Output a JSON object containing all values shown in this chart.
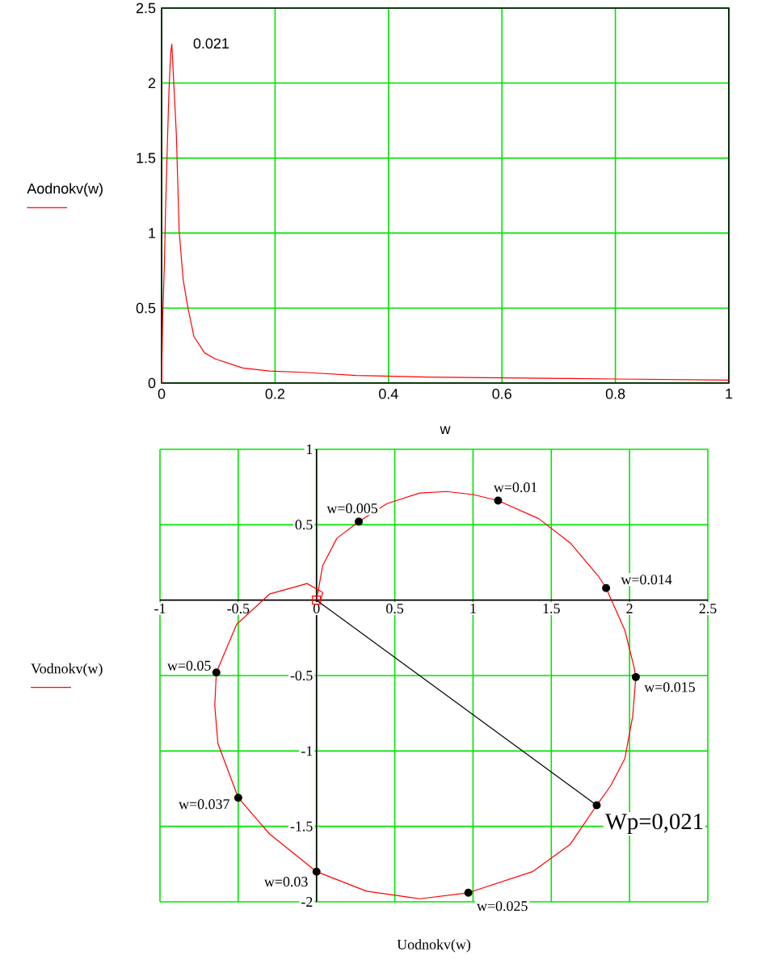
{
  "chart_data": [
    {
      "type": "line",
      "xlabel": "w",
      "ylabel": "Aodnokv(w)",
      "xlim": [
        0,
        1
      ],
      "ylim": [
        0,
        2.5
      ],
      "xticks": [
        0,
        0.2,
        0.4,
        0.6,
        0.8,
        1
      ],
      "yticks": [
        0,
        0.5,
        1,
        1.5,
        2,
        2.5
      ],
      "grid": true,
      "series": [
        {
          "color": "#ff0000",
          "x": [
            0,
            0.002,
            0.005,
            0.007,
            0.01,
            0.013,
            0.016,
            0.018,
            0.026,
            0.031,
            0.038,
            0.046,
            0.057,
            0.076,
            0.095,
            0.143,
            0.19,
            0.257,
            0.343,
            0.467,
            0.714,
            1
          ],
          "values": [
            0,
            0.44,
            0.8,
            1.16,
            1.57,
            1.95,
            2.2,
            2.26,
            1.66,
            1.01,
            0.69,
            0.51,
            0.31,
            0.2,
            0.16,
            0.1,
            0.08,
            0.07,
            0.05,
            0.04,
            0.03,
            0.02
          ]
        }
      ],
      "annotations": [
        {
          "text": "0.021",
          "x": 0.018,
          "y": 2.26
        }
      ]
    },
    {
      "type": "line",
      "xlabel": "Uodnokv(w)",
      "ylabel": "Vodnokv(w)",
      "xlim": [
        -1,
        2.5
      ],
      "ylim": [
        -2,
        1
      ],
      "xticks": [
        -1,
        -0.5,
        0,
        0.5,
        1,
        1.5,
        2,
        2.5
      ],
      "yticks": [
        -2,
        -1.5,
        -1,
        -0.5,
        0.5,
        1
      ],
      "grid": true,
      "series": [
        {
          "color": "#ff0000",
          "x": [
            0,
            0.04,
            0.13,
            0.27,
            0.45,
            0.66,
            0.83,
            1.0,
            1.16,
            1.42,
            1.62,
            1.8,
            1.85,
            1.97,
            2.03,
            2.04,
            2.02,
            1.97,
            1.88,
            1.79,
            1.62,
            1.38,
            0.97,
            0.66,
            0.32,
            0,
            -0.3,
            -0.5,
            -0.63,
            -0.65,
            -0.64,
            -0.51,
            -0.3,
            -0.06,
            0.04,
            0.02
          ],
          "values": [
            0,
            0.23,
            0.41,
            0.52,
            0.64,
            0.71,
            0.72,
            0.7,
            0.66,
            0.54,
            0.38,
            0.16,
            0.08,
            -0.2,
            -0.45,
            -0.51,
            -0.77,
            -1.05,
            -1.23,
            -1.36,
            -1.62,
            -1.8,
            -1.94,
            -1.98,
            -1.93,
            -1.8,
            -1.55,
            -1.31,
            -0.95,
            -0.7,
            -0.48,
            -0.16,
            0.04,
            0.11,
            0.05,
            -0.02
          ]
        },
        {
          "color": "#000000",
          "x": [
            0,
            1.79
          ],
          "values": [
            0,
            -1.36
          ]
        },
        {
          "type": "scatter",
          "marker": "circle",
          "color": "#000000",
          "x": [
            0.27,
            1.16,
            1.85,
            2.04,
            1.79,
            0.97,
            0,
            -0.5,
            -0.64
          ],
          "values": [
            0.52,
            0.66,
            0.08,
            -0.51,
            -1.36,
            -1.94,
            -1.8,
            -1.31,
            -0.48
          ]
        },
        {
          "type": "scatter",
          "marker": "square",
          "color": "#ff0000",
          "x": [
            0
          ],
          "values": [
            0
          ]
        }
      ],
      "annotations": [
        {
          "text": "w=0.005",
          "x": 0.27,
          "y": 0.52
        },
        {
          "text": "w=0.01",
          "x": 1.16,
          "y": 0.66
        },
        {
          "text": "w=0.014",
          "x": 1.85,
          "y": 0.08
        },
        {
          "text": "w=0.015",
          "x": 2.04,
          "y": -0.51
        },
        {
          "text": "Wp=0,021",
          "x": 1.79,
          "y": -1.36
        },
        {
          "text": "w=0.025",
          "x": 0.97,
          "y": -1.94
        },
        {
          "text": "w=0.03",
          "x": 0,
          "y": -1.8
        },
        {
          "text": "w=0.037",
          "x": -0.5,
          "y": -1.31
        },
        {
          "text": "w=0.05",
          "x": -0.64,
          "y": -0.48
        }
      ]
    }
  ]
}
